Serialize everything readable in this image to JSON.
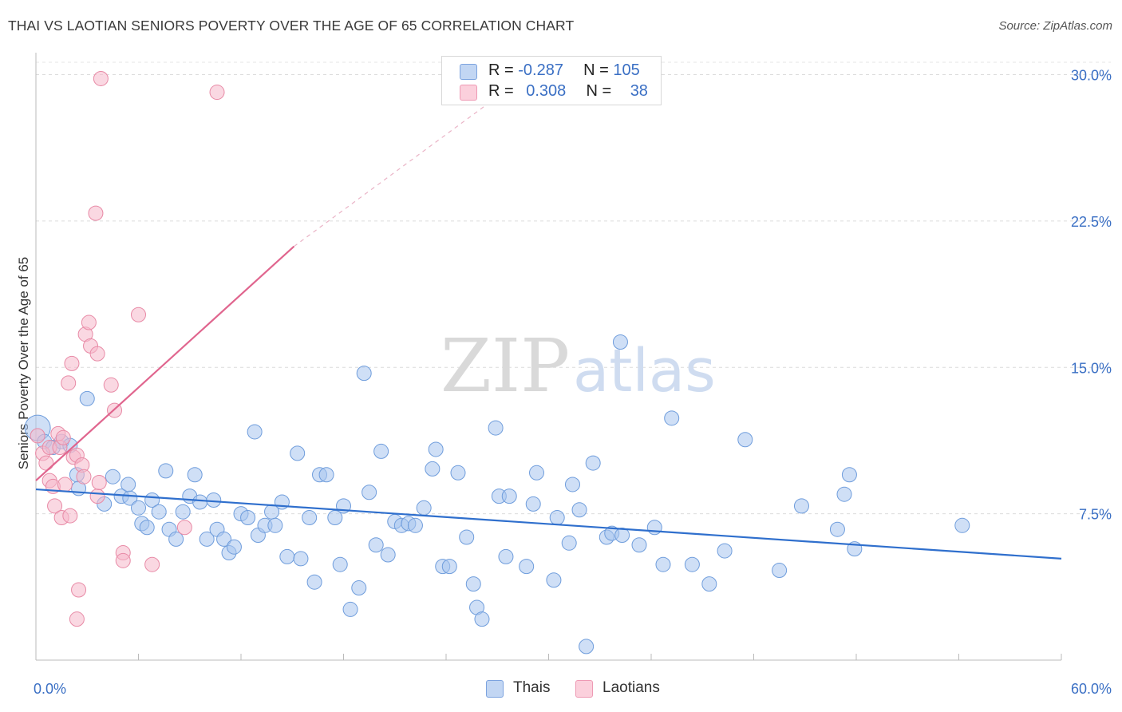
{
  "title": "THAI VS LAOTIAN SENIORS POVERTY OVER THE AGE OF 65 CORRELATION CHART",
  "source": "Source: ZipAtlas.com",
  "watermark": {
    "zip": "ZIP",
    "atlas": "atlas"
  },
  "legend": {
    "rows": [
      {
        "r_label": "R =",
        "r_value": "-0.287",
        "n_label": "N =",
        "n_value": "105",
        "color": "#a8c4ee"
      },
      {
        "r_label": "R =",
        "r_value": "0.308",
        "n_label": "N =",
        "n_value": "38",
        "color": "#f6b8cb"
      }
    ],
    "bottom": [
      {
        "label": "Thais",
        "color": "#a8c4ee"
      },
      {
        "label": "Laotians",
        "color": "#f6b8cb"
      }
    ]
  },
  "chart_data": {
    "type": "scatter",
    "title": "THAI VS LAOTIAN SENIORS POVERTY OVER THE AGE OF 65 CORRELATION CHART",
    "xlabel": "",
    "ylabel": "Seniors Poverty Over the Age of 65",
    "xlim": [
      0,
      60
    ],
    "ylim": [
      0,
      30.8
    ],
    "x_tick_labels": [
      {
        "x": 0,
        "label": "0.0%"
      },
      {
        "x": 60,
        "label": "60.0%"
      }
    ],
    "y_tick_labels": [
      {
        "y": 7.5,
        "label": "7.5%"
      },
      {
        "y": 15.0,
        "label": "15.0%"
      },
      {
        "y": 22.5,
        "label": "22.5%"
      },
      {
        "y": 30.0,
        "label": "30.0%"
      }
    ],
    "x_minor_ticks": [
      0,
      6,
      12,
      18,
      24,
      30,
      36,
      42,
      48,
      54,
      60
    ],
    "grid": true,
    "legend_position": "top-center",
    "series": [
      {
        "name": "Thais",
        "color": "#a8c4ee",
        "stroke": "#6f9ddc",
        "trend": {
          "x": [
            0,
            60
          ],
          "y": [
            8.75,
            5.2
          ],
          "color": "#2f6fcd"
        },
        "points": [
          [
            0.1,
            11.9
          ],
          [
            0.5,
            11.2
          ],
          [
            1.0,
            10.9
          ],
          [
            1.5,
            11.2
          ],
          [
            2.0,
            11.0
          ],
          [
            2.4,
            9.5
          ],
          [
            3.0,
            13.4
          ],
          [
            2.5,
            8.8
          ],
          [
            4.0,
            8.0
          ],
          [
            4.5,
            9.4
          ],
          [
            5.0,
            8.4
          ],
          [
            5.5,
            8.3
          ],
          [
            5.4,
            9.0
          ],
          [
            6.0,
            7.8
          ],
          [
            6.2,
            7.0
          ],
          [
            6.5,
            6.8
          ],
          [
            6.8,
            8.2
          ],
          [
            7.2,
            7.6
          ],
          [
            7.6,
            9.7
          ],
          [
            7.8,
            6.7
          ],
          [
            8.2,
            6.2
          ],
          [
            8.6,
            7.6
          ],
          [
            9.0,
            8.4
          ],
          [
            9.3,
            9.5
          ],
          [
            9.6,
            8.1
          ],
          [
            10.0,
            6.2
          ],
          [
            10.4,
            8.2
          ],
          [
            10.6,
            6.7
          ],
          [
            11.0,
            6.2
          ],
          [
            11.3,
            5.5
          ],
          [
            11.6,
            5.8
          ],
          [
            12.0,
            7.5
          ],
          [
            12.4,
            7.3
          ],
          [
            12.8,
            11.7
          ],
          [
            13.0,
            6.4
          ],
          [
            13.4,
            6.9
          ],
          [
            13.8,
            7.6
          ],
          [
            14.0,
            6.9
          ],
          [
            14.4,
            8.1
          ],
          [
            14.7,
            5.3
          ],
          [
            15.3,
            10.6
          ],
          [
            15.5,
            5.2
          ],
          [
            16.0,
            7.3
          ],
          [
            16.3,
            4.0
          ],
          [
            16.6,
            9.5
          ],
          [
            17.0,
            9.5
          ],
          [
            17.5,
            7.3
          ],
          [
            17.8,
            4.9
          ],
          [
            18.0,
            7.9
          ],
          [
            18.4,
            2.6
          ],
          [
            18.9,
            3.7
          ],
          [
            19.2,
            14.7
          ],
          [
            19.5,
            8.6
          ],
          [
            19.9,
            5.9
          ],
          [
            20.2,
            10.7
          ],
          [
            20.6,
            5.4
          ],
          [
            21.0,
            7.1
          ],
          [
            21.4,
            6.9
          ],
          [
            21.8,
            7.0
          ],
          [
            22.2,
            6.9
          ],
          [
            22.7,
            7.8
          ],
          [
            23.2,
            9.8
          ],
          [
            23.4,
            10.8
          ],
          [
            23.8,
            4.8
          ],
          [
            24.2,
            4.8
          ],
          [
            24.7,
            9.6
          ],
          [
            25.2,
            6.3
          ],
          [
            25.6,
            3.9
          ],
          [
            25.8,
            2.7
          ],
          [
            26.1,
            2.1
          ],
          [
            26.9,
            11.9
          ],
          [
            27.1,
            8.4
          ],
          [
            27.5,
            5.3
          ],
          [
            27.7,
            8.4
          ],
          [
            28.7,
            4.8
          ],
          [
            29.1,
            8.0
          ],
          [
            29.3,
            9.6
          ],
          [
            30.3,
            4.1
          ],
          [
            30.5,
            7.3
          ],
          [
            31.2,
            6.0
          ],
          [
            31.4,
            9.0
          ],
          [
            31.8,
            7.7
          ],
          [
            32.6,
            10.1
          ],
          [
            32.2,
            0.7
          ],
          [
            33.4,
            6.3
          ],
          [
            33.7,
            6.5
          ],
          [
            34.3,
            6.4
          ],
          [
            34.2,
            16.3
          ],
          [
            35.3,
            5.9
          ],
          [
            36.7,
            4.9
          ],
          [
            36.2,
            6.8
          ],
          [
            37.2,
            12.4
          ],
          [
            38.4,
            4.9
          ],
          [
            39.4,
            3.9
          ],
          [
            40.3,
            5.6
          ],
          [
            41.5,
            11.3
          ],
          [
            43.5,
            4.6
          ],
          [
            44.8,
            7.9
          ],
          [
            46.9,
            6.7
          ],
          [
            47.3,
            8.5
          ],
          [
            47.6,
            9.5
          ],
          [
            47.9,
            5.7
          ],
          [
            54.2,
            6.9
          ]
        ]
      },
      {
        "name": "Laotians",
        "color": "#f6b8cb",
        "stroke": "#e88aa6",
        "trend": {
          "x": [
            0,
            15.1
          ],
          "y": [
            9.2,
            21.2
          ],
          "dash_to": [
            30.0,
            30.8
          ],
          "color": "#e0658e"
        },
        "points": [
          [
            0.1,
            11.5
          ],
          [
            0.4,
            10.6
          ],
          [
            0.6,
            10.1
          ],
          [
            0.8,
            9.2
          ],
          [
            0.8,
            10.9
          ],
          [
            1.0,
            8.9
          ],
          [
            1.1,
            7.9
          ],
          [
            1.3,
            11.6
          ],
          [
            1.4,
            10.9
          ],
          [
            1.6,
            11.4
          ],
          [
            1.5,
            7.3
          ],
          [
            1.7,
            9.0
          ],
          [
            1.9,
            14.2
          ],
          [
            2.0,
            7.4
          ],
          [
            2.1,
            15.2
          ],
          [
            2.2,
            10.4
          ],
          [
            2.4,
            10.5
          ],
          [
            2.5,
            3.6
          ],
          [
            2.4,
            2.1
          ],
          [
            2.7,
            10.0
          ],
          [
            2.8,
            9.4
          ],
          [
            2.9,
            16.7
          ],
          [
            3.1,
            17.3
          ],
          [
            3.2,
            16.1
          ],
          [
            3.6,
            15.7
          ],
          [
            3.6,
            8.4
          ],
          [
            3.7,
            9.1
          ],
          [
            3.8,
            29.8
          ],
          [
            3.5,
            22.9
          ],
          [
            4.4,
            14.1
          ],
          [
            4.6,
            12.8
          ],
          [
            5.1,
            5.5
          ],
          [
            5.1,
            5.1
          ],
          [
            6.0,
            17.7
          ],
          [
            6.8,
            4.9
          ],
          [
            8.7,
            6.8
          ],
          [
            10.6,
            29.1
          ]
        ]
      }
    ]
  }
}
